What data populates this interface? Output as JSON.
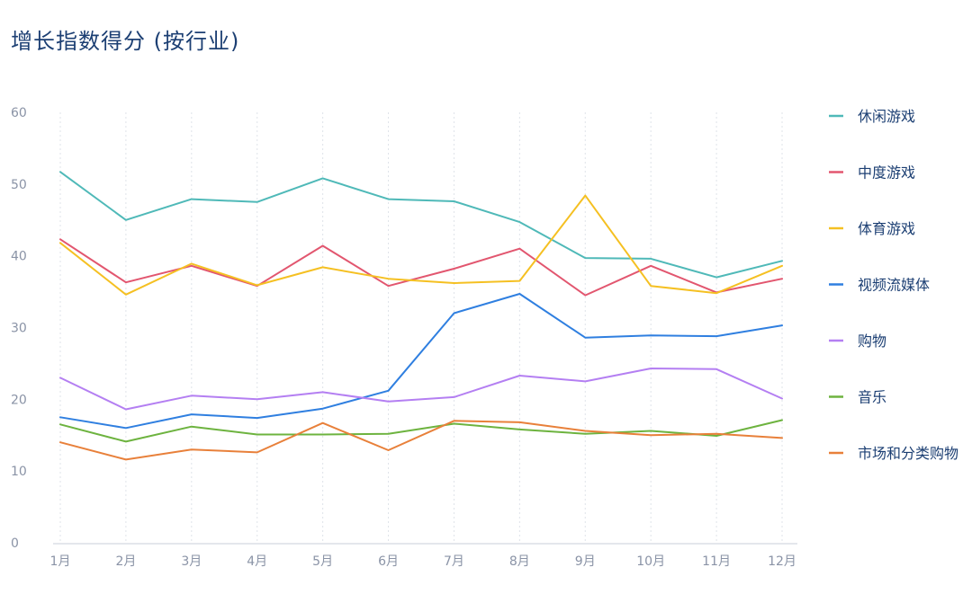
{
  "chart_data": {
    "type": "line",
    "title": "增长指数得分 (按行业)",
    "categories": [
      "1月",
      "2月",
      "3月",
      "4月",
      "5月",
      "6月",
      "7月",
      "8月",
      "9月",
      "10月",
      "11月",
      "12月"
    ],
    "ylim": [
      0,
      60
    ],
    "yticks": [
      0,
      10,
      20,
      30,
      40,
      50,
      60
    ],
    "grid": "vertical-dotted",
    "legend_position": "right",
    "series": [
      {
        "name": "休闲游戏",
        "color": "#4fb9b8",
        "values": [
          51.7,
          45.0,
          47.9,
          47.5,
          50.8,
          47.9,
          47.6,
          44.7,
          39.7,
          39.6,
          37.0,
          39.3
        ]
      },
      {
        "name": "中度游戏",
        "color": "#e2566f",
        "values": [
          42.3,
          36.3,
          38.6,
          35.8,
          41.4,
          35.8,
          38.2,
          41.0,
          34.5,
          38.6,
          34.9,
          36.8
        ]
      },
      {
        "name": "体育游戏",
        "color": "#f5c022",
        "values": [
          41.8,
          34.6,
          38.9,
          35.9,
          38.4,
          36.8,
          36.2,
          36.5,
          48.4,
          35.8,
          34.8,
          38.6
        ]
      },
      {
        "name": "视频流媒体",
        "color": "#2f7fe0",
        "values": [
          17.5,
          16.0,
          17.9,
          17.4,
          18.7,
          21.2,
          32.0,
          34.7,
          28.6,
          28.9,
          28.8,
          30.3
        ]
      },
      {
        "name": "购物",
        "color": "#b47ff2",
        "values": [
          23.0,
          18.6,
          20.5,
          20.0,
          21.0,
          19.7,
          20.3,
          23.3,
          22.5,
          24.3,
          24.2,
          20.1
        ]
      },
      {
        "name": "音乐",
        "color": "#6db33f",
        "values": [
          16.5,
          14.1,
          16.2,
          15.1,
          15.1,
          15.2,
          16.6,
          15.8,
          15.2,
          15.6,
          14.9,
          17.1
        ]
      },
      {
        "name": "市场和分类购物",
        "color": "#e8803a",
        "values": [
          14.0,
          11.6,
          13.0,
          12.6,
          16.7,
          12.9,
          17.0,
          16.8,
          15.6,
          15.0,
          15.2,
          14.6
        ]
      }
    ]
  }
}
